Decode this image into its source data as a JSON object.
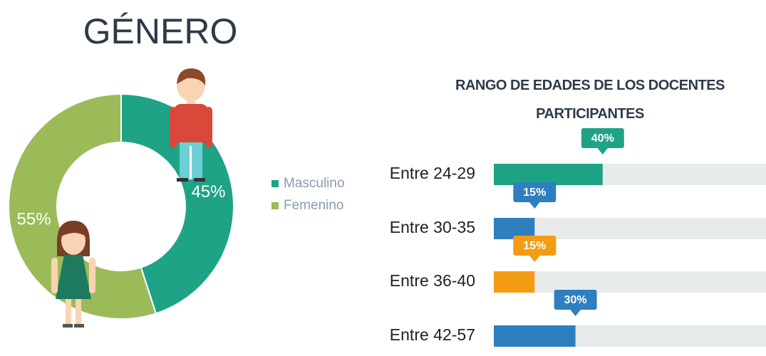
{
  "chart_data": [
    {
      "type": "pie",
      "title": "GÉNERO",
      "categories": [
        "Masculino",
        "Femenino"
      ],
      "values": [
        45,
        55
      ],
      "value_labels": [
        "45%",
        "55%"
      ],
      "colors": [
        "#1fa386",
        "#9bbb59"
      ]
    },
    {
      "type": "bar",
      "title": "RANGO DE EDADES DE LOS DOCENTES PARTICIPANTES",
      "categories": [
        "Entre 24-29",
        "Entre 30-35",
        "Entre 36-40",
        "Entre 42-57"
      ],
      "values": [
        40,
        15,
        15,
        30
      ],
      "value_labels": [
        "40%",
        "15%",
        "15%",
        "30%"
      ],
      "colors": [
        "#1fa386",
        "#2e7fbf",
        "#f39c12",
        "#2e7fbf"
      ],
      "xlim": [
        0,
        100
      ]
    }
  ]
}
